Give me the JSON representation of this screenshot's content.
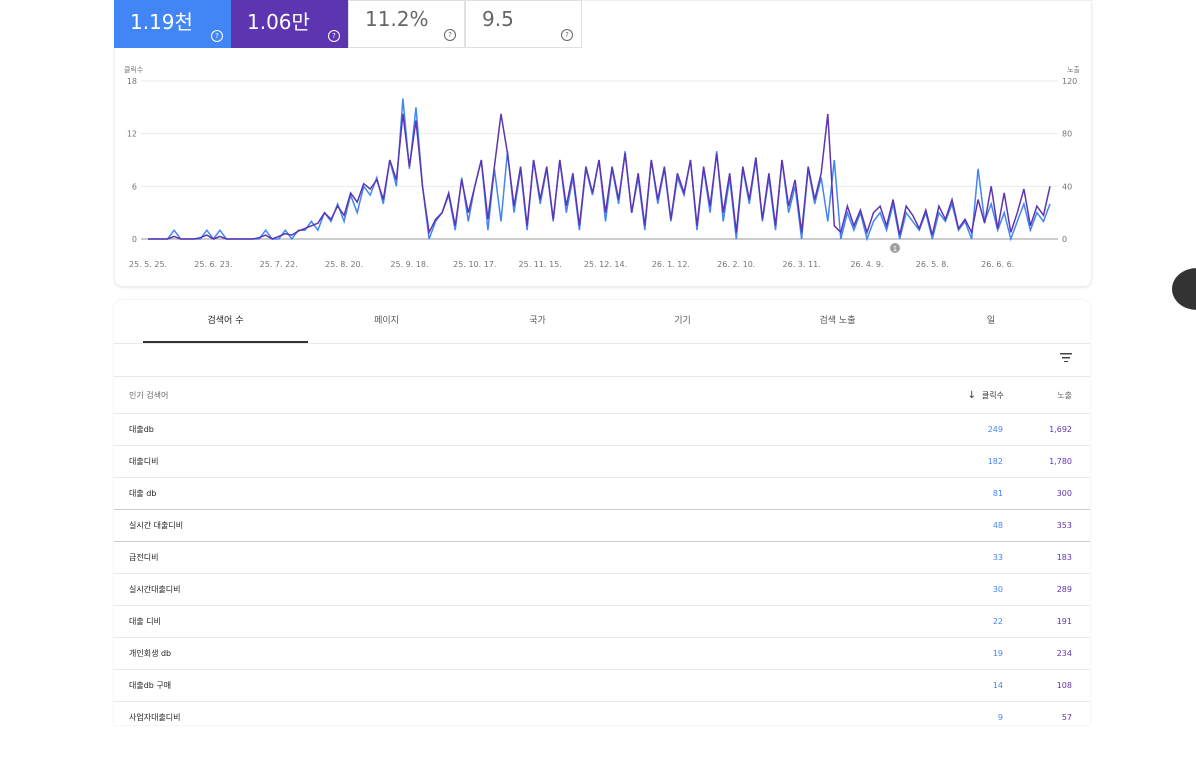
{
  "cards": [
    {
      "value": "1.19천"
    },
    {
      "value": "1.06만"
    },
    {
      "value": "11.2%"
    },
    {
      "value": "9.5"
    }
  ],
  "chart_data": {
    "type": "line",
    "y_label": "클릭수",
    "y2_label": "노출",
    "categories": [
      "25. 5. 25.",
      null,
      null,
      null,
      null,
      null,
      null,
      null,
      null,
      null,
      "25. 6. 23.",
      null,
      null,
      null,
      null,
      null,
      null,
      null,
      null,
      null,
      "25. 7. 22.",
      null,
      null,
      null,
      null,
      null,
      null,
      null,
      null,
      null,
      "25. 8. 20.",
      null,
      null,
      null,
      null,
      null,
      null,
      null,
      null,
      null,
      "25. 9. 18.",
      null,
      null,
      null,
      null,
      null,
      null,
      null,
      null,
      null,
      "25. 10. 17.",
      null,
      null,
      null,
      null,
      null,
      null,
      null,
      null,
      null,
      "25. 11. 15.",
      null,
      null,
      null,
      null,
      null,
      null,
      null,
      null,
      null,
      "25. 12. 14.",
      null,
      null,
      null,
      null,
      null,
      null,
      null,
      null,
      null,
      "26. 1. 12.",
      null,
      null,
      null,
      null,
      null,
      null,
      null,
      null,
      null,
      "26. 2. 10.",
      null,
      null,
      null,
      null,
      null,
      null,
      null,
      null,
      null,
      "26. 3. 11.",
      null,
      null,
      null,
      null,
      null,
      null,
      null,
      null,
      null,
      "26. 4. 9.",
      null,
      null,
      null,
      null,
      null,
      null,
      null,
      null,
      null,
      "26. 5. 8.",
      null,
      null,
      null,
      null,
      null,
      null,
      null,
      null,
      null,
      "26. 6. 6.",
      null,
      null,
      null,
      null,
      null,
      null,
      null,
      null
    ],
    "series": [
      {
        "name": "클릭수",
        "color": "#4285f4",
        "values": [
          0,
          0,
          0,
          0,
          1,
          0,
          0,
          0,
          0,
          1,
          0,
          1,
          0,
          0,
          0,
          0,
          0,
          0,
          1,
          0,
          0,
          1,
          0,
          1,
          1,
          2,
          1,
          3,
          2,
          4,
          2,
          5,
          3,
          6,
          5,
          7,
          4,
          9,
          6,
          16,
          8,
          15,
          6,
          0,
          2,
          3,
          5,
          1,
          7,
          2,
          6,
          9,
          1,
          8,
          2,
          10,
          3,
          8,
          1,
          9,
          4,
          8,
          2,
          9,
          3,
          7,
          1,
          8,
          5,
          9,
          2,
          8,
          4,
          10,
          3,
          7,
          1,
          9,
          4,
          8,
          2,
          7,
          5,
          9,
          1,
          8,
          3,
          10,
          2,
          7,
          0,
          8,
          4,
          9,
          2,
          7,
          1,
          9,
          3,
          6,
          0,
          8,
          4,
          7,
          2,
          9,
          0,
          3,
          1,
          3,
          0,
          2,
          3,
          1,
          4,
          0,
          3,
          2,
          1,
          3,
          0,
          3,
          2,
          4,
          1,
          2,
          0,
          8,
          2,
          4,
          1,
          3,
          0,
          2,
          4,
          1,
          3,
          2,
          4
        ]
      },
      {
        "name": "노출",
        "color": "#5e35b1",
        "axis": "y2",
        "values": [
          0,
          0,
          0,
          0,
          2,
          0,
          0,
          0,
          1,
          3,
          0,
          2,
          0,
          0,
          0,
          0,
          0,
          1,
          3,
          0,
          2,
          4,
          3,
          6,
          8,
          10,
          12,
          20,
          15,
          25,
          18,
          35,
          28,
          42,
          38,
          45,
          30,
          60,
          45,
          95,
          55,
          90,
          40,
          5,
          15,
          20,
          35,
          10,
          45,
          20,
          40,
          60,
          15,
          55,
          95,
          65,
          25,
          55,
          10,
          60,
          30,
          55,
          15,
          60,
          25,
          50,
          10,
          55,
          35,
          60,
          20,
          55,
          30,
          65,
          20,
          50,
          10,
          60,
          30,
          55,
          15,
          50,
          35,
          60,
          10,
          55,
          25,
          65,
          20,
          50,
          5,
          55,
          30,
          62,
          15,
          50,
          10,
          60,
          25,
          45,
          5,
          55,
          30,
          50,
          95,
          10,
          5,
          25,
          10,
          22,
          5,
          20,
          25,
          10,
          30,
          3,
          25,
          18,
          8,
          22,
          3,
          25,
          15,
          30,
          8,
          15,
          5,
          30,
          12,
          40,
          8,
          35,
          5,
          20,
          38,
          10,
          25,
          18,
          40
        ]
      }
    ],
    "ylim": [
      0,
      18
    ],
    "yticks": [
      0,
      6,
      12,
      18
    ],
    "y2lim": [
      0,
      120
    ],
    "y2ticks": [
      0,
      40,
      80,
      120
    ],
    "grid": true,
    "annotation": "1"
  },
  "tabs": [
    "검색어 수",
    "페이지",
    "국가",
    "기기",
    "검색 노출",
    "일"
  ],
  "table": {
    "header": [
      "인기 검색어",
      "클릭수",
      "노출"
    ],
    "rows": [
      [
        "대출db",
        249,
        "1,692"
      ],
      [
        "대출디비",
        182,
        "1,780"
      ],
      [
        "대출 db",
        81,
        300
      ],
      [
        "실시간 대출디비",
        48,
        353
      ],
      [
        "급전디비",
        33,
        183
      ],
      [
        "실시간대출디비",
        30,
        289
      ],
      [
        "대출 디비",
        22,
        191
      ],
      [
        "개인회생 db",
        19,
        234
      ],
      [
        "대출db 구매",
        14,
        108
      ],
      [
        "사업자대출디비",
        9,
        57
      ]
    ]
  }
}
